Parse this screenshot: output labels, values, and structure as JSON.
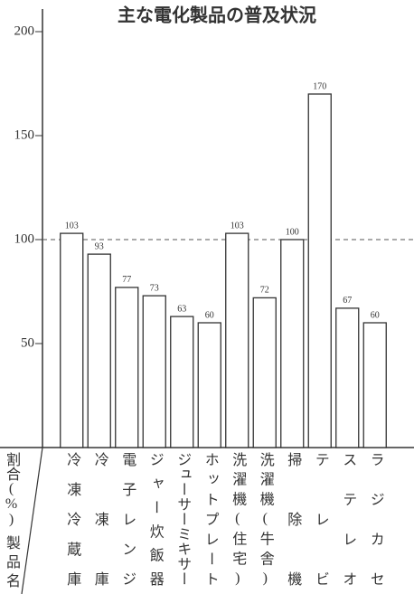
{
  "chart_data": {
    "type": "bar",
    "title": "主な電化製品の普及状況",
    "y_label": "割合(%)",
    "x_label": "製品名",
    "categories": [
      "冷凍冷蔵庫",
      "冷凍庫",
      "電子レンジ",
      "ジャー炊飯器",
      "ジューサーミキサー",
      "ホットプレート",
      "洗濯機(住宅)",
      "洗濯機(牛舎)",
      "掃除機",
      "テレビ",
      "ステレオ",
      "ラジカセ"
    ],
    "values": [
      103,
      93,
      77,
      73,
      63,
      60,
      103,
      72,
      100,
      170,
      67,
      60
    ],
    "color": "#ffffff",
    "edgecolor": "#333333",
    "ylim": [
      0,
      210
    ],
    "yticks": [
      50,
      100,
      150,
      200
    ],
    "reference_line": 100
  }
}
